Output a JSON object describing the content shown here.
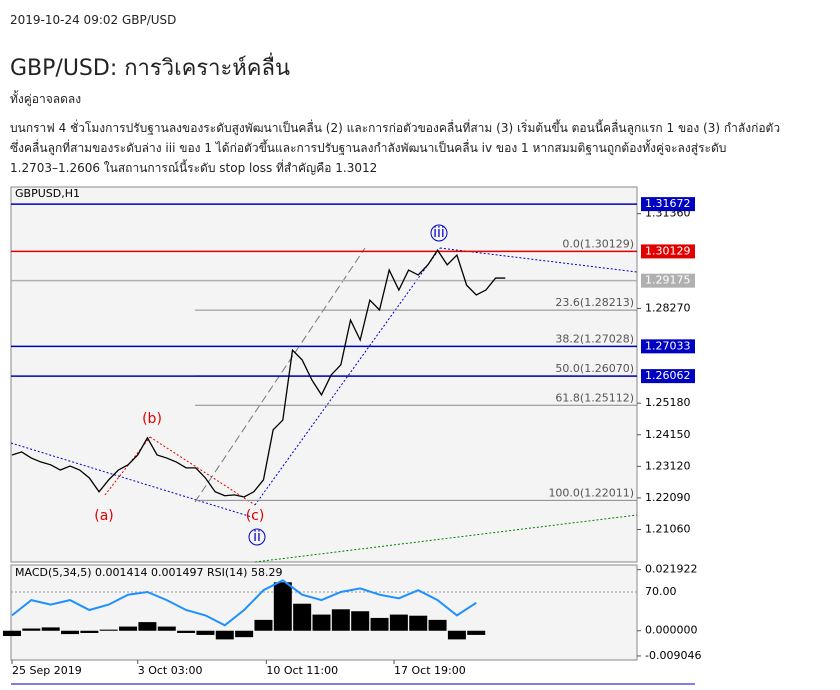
{
  "header": {
    "date": "2019-10-24 09:02 GBP/USD",
    "title": "GBP/USD: การวิเคราะห์คลื่น",
    "subtitle": "ทั้งคู่อาจลดลง",
    "body": [
      "บนกราฟ 4 ชั่วโมงการปรับฐานลงของระดับสูงพัฒนาเป็นคลื่น (2) และการก่อตัวของคลื่นที่สาม (3) เริ่มต้นขึ้น ตอนนี้คลื่นลูกแรก 1 ของ (3) กำลังก่อตัว",
      "ซึ่งคลื่นลูกที่สามของระดับล่าง iii ของ 1 ได้ก่อตัวขึ้นและการปรับฐานลงกำลังพัฒนาเป็นคลื่น iv ของ 1 หากสมมติฐานถูกต้องทั้งคู่จะลงสู่ระดับ",
      "1.2703–1.2606 ในสถานการณ์นี้ระดับ stop loss ที่สำคัญคือ 1.3012"
    ]
  },
  "chart_data": {
    "type": "line",
    "title": "GBPUSD,H1",
    "x": [
      0,
      1,
      2,
      3,
      4,
      5,
      6,
      7,
      8,
      9,
      10,
      11,
      12,
      13,
      14,
      15,
      16,
      17,
      18,
      19,
      20,
      21,
      22,
      23,
      24,
      25,
      26,
      27,
      28,
      29,
      30,
      31,
      32,
      33,
      34,
      35,
      36,
      37,
      38,
      39,
      40,
      41,
      42,
      43,
      44,
      45,
      46,
      47,
      48,
      49,
      50,
      51
    ],
    "values": [
      1.2349,
      1.2359,
      1.2339,
      1.2326,
      1.2317,
      1.23,
      1.2313,
      1.23,
      1.2274,
      1.2229,
      1.2268,
      1.23,
      1.2317,
      1.2349,
      1.2405,
      1.2349,
      1.2339,
      1.2326,
      1.2307,
      1.2307,
      1.2274,
      1.2229,
      1.2216,
      1.2219,
      1.2212,
      1.2229,
      1.2268,
      1.2431,
      1.2463,
      1.2691,
      1.2659,
      1.2594,
      1.2545,
      1.261,
      1.2643,
      1.2789,
      1.2724,
      1.2854,
      1.2822,
      1.2952,
      1.2887,
      1.2952,
      1.2936,
      1.2969,
      1.3017,
      1.2969,
      1.3001,
      1.2903,
      1.2871,
      1.2887,
      1.2926,
      1.2926
    ],
    "color": "#000000",
    "xlim": [
      0,
      64
    ],
    "ylim": [
      1.2,
      1.3223
    ],
    "xticks": [
      {
        "value": 0,
        "label": "25 Sep 2019"
      },
      {
        "value": 13,
        "label": "3 Oct 03:00"
      },
      {
        "value": 26.3,
        "label": "10 Oct 11:00"
      },
      {
        "value": 39.5,
        "label": "17 Oct 19:00"
      }
    ],
    "yticks": [
      {
        "value": 1.3136,
        "label": "1.31360"
      },
      {
        "value": 1.2827,
        "label": "1.28270"
      },
      {
        "value": 1.2518,
        "label": "1.25180"
      },
      {
        "value": 1.2415,
        "label": "1.24150"
      },
      {
        "value": 1.2312,
        "label": "1.23120"
      },
      {
        "value": 1.2209,
        "label": "1.22090"
      },
      {
        "value": 1.2106,
        "label": "1.21060"
      }
    ],
    "levels": [
      {
        "value": 1.31672,
        "color": "#0000c0"
      },
      {
        "value": 1.30129,
        "color": "#e00000"
      },
      {
        "value": 1.29175,
        "color": "#b0b0b0"
      },
      {
        "value": 1.27033,
        "color": "#0000c0"
      },
      {
        "value": 1.26062,
        "color": "#0000c0"
      }
    ],
    "fibo": [
      {
        "label": "0.0(1.30129)",
        "value": 1.30129
      },
      {
        "label": "23.6(1.28213)",
        "value": 1.28213
      },
      {
        "label": "38.2(1.27028)",
        "value": 1.27028
      },
      {
        "label": "50.0(1.26070)",
        "value": 1.2607
      },
      {
        "label": "61.8(1.25112)",
        "value": 1.25112
      },
      {
        "label": "100.0(1.22011)",
        "value": 1.22011
      }
    ],
    "waves": [
      {
        "label": "(a)",
        "color": "#e00000"
      },
      {
        "label": "(b)",
        "color": "#e00000"
      },
      {
        "label": "(c)",
        "color": "#e00000"
      },
      {
        "label": "ii",
        "color": "#0000c0"
      },
      {
        "label": "iii",
        "color": "#0000c0"
      }
    ],
    "indicator": {
      "title": "MACD(5,34,5) 0.001414 0.001497 RSI(14) 58.29",
      "x": [
        0,
        2,
        4,
        6,
        8,
        10,
        12,
        14,
        16,
        18,
        20,
        22,
        24,
        26,
        28,
        30,
        32,
        34,
        36,
        38,
        40,
        42,
        44,
        46,
        48
      ],
      "macd": [
        -0.0019,
        0.0008,
        0.0012,
        -0.0012,
        -0.0008,
        0.0004,
        0.0015,
        0.0031,
        0.0015,
        -0.0008,
        -0.0015,
        -0.0031,
        -0.0023,
        0.0039,
        0.0174,
        0.0097,
        0.0058,
        0.0077,
        0.007,
        0.0046,
        0.0058,
        0.0054,
        0.0039,
        -0.0031,
        -0.0015
      ],
      "rsi": [
        44,
        61,
        56,
        61,
        50,
        56,
        67,
        70,
        61,
        50,
        44,
        33,
        50,
        72,
        83,
        67,
        61,
        70,
        74,
        67,
        63,
        72,
        61,
        44,
        58
      ],
      "ylim": [
        -0.0105,
        0.0236
      ],
      "rsi_ylim": [
        0,
        100
      ],
      "rsi_color": "#1e90ff",
      "yticks": [
        {
          "value": 0.021922,
          "label": "0.021922"
        },
        {
          "value": 0,
          "label": "0.000000"
        },
        {
          "value": -0.009046,
          "label": "-0.009046"
        }
      ],
      "rsi_ticks": [
        {
          "value": 70,
          "label": "70.00"
        }
      ]
    }
  }
}
